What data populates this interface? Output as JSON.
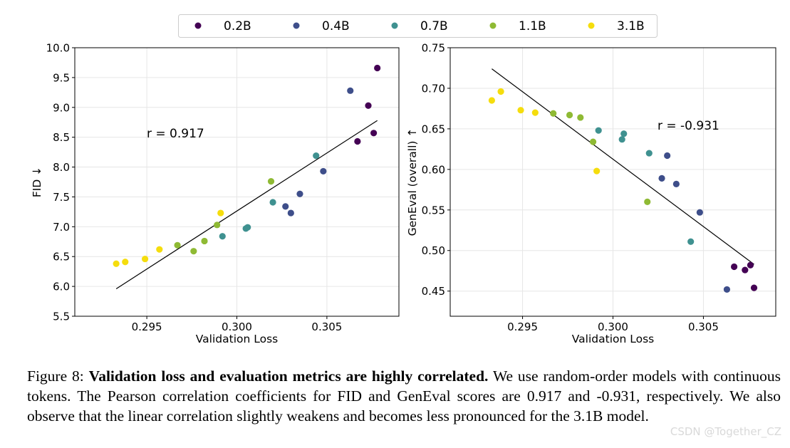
{
  "legend": {
    "entries": [
      {
        "label": "0.2B",
        "color": "#440154"
      },
      {
        "label": "0.4B",
        "color": "#3e4e8a"
      },
      {
        "label": "0.7B",
        "color": "#3f9190"
      },
      {
        "label": "1.1B",
        "color": "#8fba34"
      },
      {
        "label": "3.1B",
        "color": "#f5dd0d"
      }
    ],
    "placement": "top-center"
  },
  "chart_data": [
    {
      "type": "scatter",
      "xlabel": "Validation Loss",
      "ylabel": "FID ↓",
      "xlim": [
        0.291,
        0.309
      ],
      "ylim": [
        5.5,
        10.0
      ],
      "xticks": [
        "0.295",
        "0.300",
        "0.305"
      ],
      "yticks": [
        "5.5",
        "6.0",
        "6.5",
        "7.0",
        "7.5",
        "8.0",
        "8.5",
        "9.0",
        "9.5",
        "10.0"
      ],
      "grid": true,
      "annotation": "r = 0.917",
      "fit_line": [
        [
          0.2933,
          5.96
        ],
        [
          0.3078,
          8.78
        ]
      ],
      "series": [
        {
          "name": "0.2B",
          "points": [
            [
              0.3067,
              8.43
            ],
            [
              0.3073,
              9.03
            ],
            [
              0.3076,
              8.57
            ],
            [
              0.3078,
              9.66
            ]
          ]
        },
        {
          "name": "0.4B",
          "points": [
            [
              0.3027,
              7.34
            ],
            [
              0.303,
              7.23
            ],
            [
              0.3035,
              7.55
            ],
            [
              0.3048,
              7.93
            ],
            [
              0.3063,
              9.28
            ]
          ]
        },
        {
          "name": "0.7B",
          "points": [
            [
              0.2992,
              6.84
            ],
            [
              0.3005,
              6.97
            ],
            [
              0.3006,
              6.99
            ],
            [
              0.302,
              7.41
            ],
            [
              0.3044,
              8.19
            ]
          ]
        },
        {
          "name": "1.1B",
          "points": [
            [
              0.2967,
              6.69
            ],
            [
              0.2976,
              6.59
            ],
            [
              0.2982,
              6.76
            ],
            [
              0.2989,
              7.03
            ],
            [
              0.3019,
              7.76
            ]
          ]
        },
        {
          "name": "3.1B",
          "points": [
            [
              0.2933,
              6.38
            ],
            [
              0.2938,
              6.41
            ],
            [
              0.2949,
              6.46
            ],
            [
              0.2957,
              6.62
            ],
            [
              0.2991,
              7.23
            ]
          ]
        }
      ]
    },
    {
      "type": "scatter",
      "xlabel": "Validation Loss",
      "ylabel": "GenEval (overall) ↑",
      "xlim": [
        0.291,
        0.309
      ],
      "ylim": [
        0.419,
        0.75
      ],
      "xticks": [
        "0.295",
        "0.300",
        "0.305"
      ],
      "yticks": [
        "0.45",
        "0.50",
        "0.55",
        "0.60",
        "0.65",
        "0.70",
        "0.75"
      ],
      "grid": true,
      "annotation": "r = -0.931",
      "fit_line": [
        [
          0.2933,
          0.724
        ],
        [
          0.3078,
          0.483
        ]
      ],
      "series": [
        {
          "name": "0.2B",
          "points": [
            [
              0.3067,
              0.48
            ],
            [
              0.3073,
              0.476
            ],
            [
              0.3076,
              0.482
            ],
            [
              0.3078,
              0.454
            ]
          ]
        },
        {
          "name": "0.4B",
          "points": [
            [
              0.3027,
              0.589
            ],
            [
              0.303,
              0.617
            ],
            [
              0.3035,
              0.582
            ],
            [
              0.3048,
              0.547
            ],
            [
              0.3063,
              0.452
            ]
          ]
        },
        {
          "name": "0.7B",
          "points": [
            [
              0.2992,
              0.648
            ],
            [
              0.3005,
              0.637
            ],
            [
              0.3006,
              0.644
            ],
            [
              0.302,
              0.62
            ],
            [
              0.3043,
              0.511
            ]
          ]
        },
        {
          "name": "1.1B",
          "points": [
            [
              0.2967,
              0.669
            ],
            [
              0.2976,
              0.667
            ],
            [
              0.2982,
              0.664
            ],
            [
              0.2989,
              0.634
            ],
            [
              0.3019,
              0.56
            ]
          ]
        },
        {
          "name": "3.1B",
          "points": [
            [
              0.2933,
              0.685
            ],
            [
              0.2938,
              0.696
            ],
            [
              0.2949,
              0.673
            ],
            [
              0.2957,
              0.67
            ],
            [
              0.2991,
              0.598
            ]
          ]
        }
      ]
    }
  ],
  "caption": {
    "label": "Figure 8:",
    "bold": "Validation loss and evaluation metrics are highly correlated.",
    "body": "We use random-order models with continuous tokens. The Pearson correlation coefficients for FID and GenEval scores are 0.917 and -0.931, respectively. We also observe that the linear correlation slightly weakens and becomes less pronounced for the 3.1B model."
  },
  "watermark": "CSDN @Together_CZ"
}
